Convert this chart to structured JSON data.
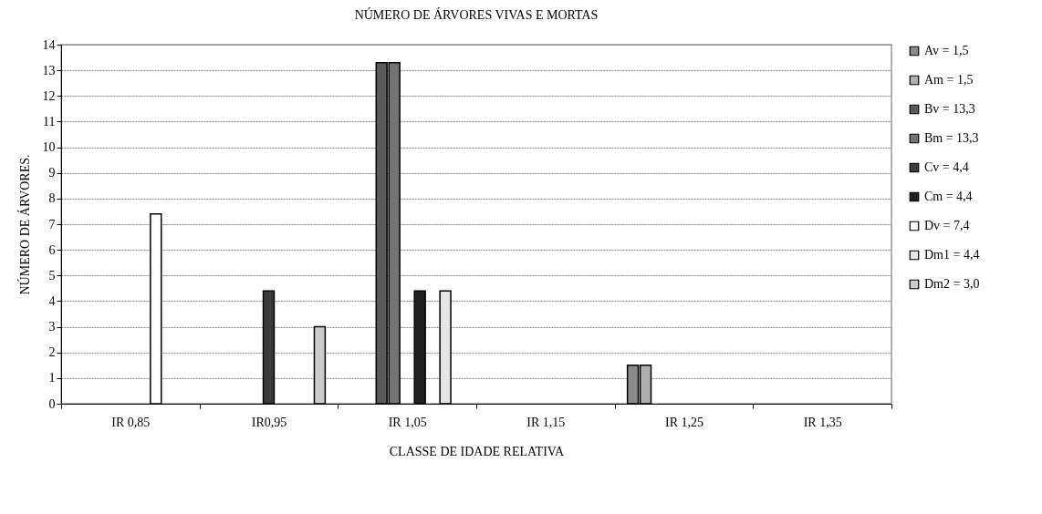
{
  "chart_data": {
    "type": "bar",
    "title": "NÚMERO DE ÁRVORES VIVAS E MORTAS",
    "xlabel": "CLASSE DE IDADE RELATIVA",
    "ylabel": "NÚMERO DE ÁRVORES.",
    "categories": [
      "IR 0,85",
      "IR0,95",
      "IR 1,05",
      "IR 1,15",
      "IR 1,25",
      "IR 1,35"
    ],
    "series": [
      {
        "name": "Av  = 1,5",
        "color": "#8a8a8a",
        "values": [
          null,
          null,
          null,
          null,
          1.5,
          null
        ]
      },
      {
        "name": "Am = 1,5",
        "color": "#b0b0b0",
        "values": [
          null,
          null,
          null,
          null,
          1.5,
          null
        ]
      },
      {
        "name": "Bv  = 13,3",
        "color": "#5a5a5a",
        "values": [
          null,
          null,
          13.3,
          null,
          null,
          null
        ]
      },
      {
        "name": "Bm = 13,3",
        "color": "#747474",
        "values": [
          null,
          null,
          13.3,
          null,
          null,
          null
        ]
      },
      {
        "name": "Cv  = 4,4",
        "color": "#3a3a3a",
        "values": [
          null,
          4.4,
          null,
          null,
          null,
          null
        ]
      },
      {
        "name": "Cm = 4,4",
        "color": "#202020",
        "values": [
          null,
          null,
          4.4,
          null,
          null,
          null
        ]
      },
      {
        "name": "Dv  = 7,4",
        "color": "#ffffff",
        "values": [
          7.4,
          null,
          null,
          null,
          null,
          null
        ]
      },
      {
        "name": "Dm1 = 4,4",
        "color": "#e6e6e6",
        "values": [
          null,
          null,
          4.4,
          null,
          null,
          null
        ]
      },
      {
        "name": "Dm2 = 3,0",
        "color": "#cccccc",
        "values": [
          null,
          3.0,
          null,
          null,
          null,
          null
        ]
      }
    ],
    "ylim": [
      0,
      14
    ],
    "yticks": [
      0,
      1,
      2,
      3,
      4,
      5,
      6,
      7,
      8,
      9,
      10,
      11,
      12,
      13,
      14
    ],
    "grid": "y",
    "legend": "right"
  }
}
